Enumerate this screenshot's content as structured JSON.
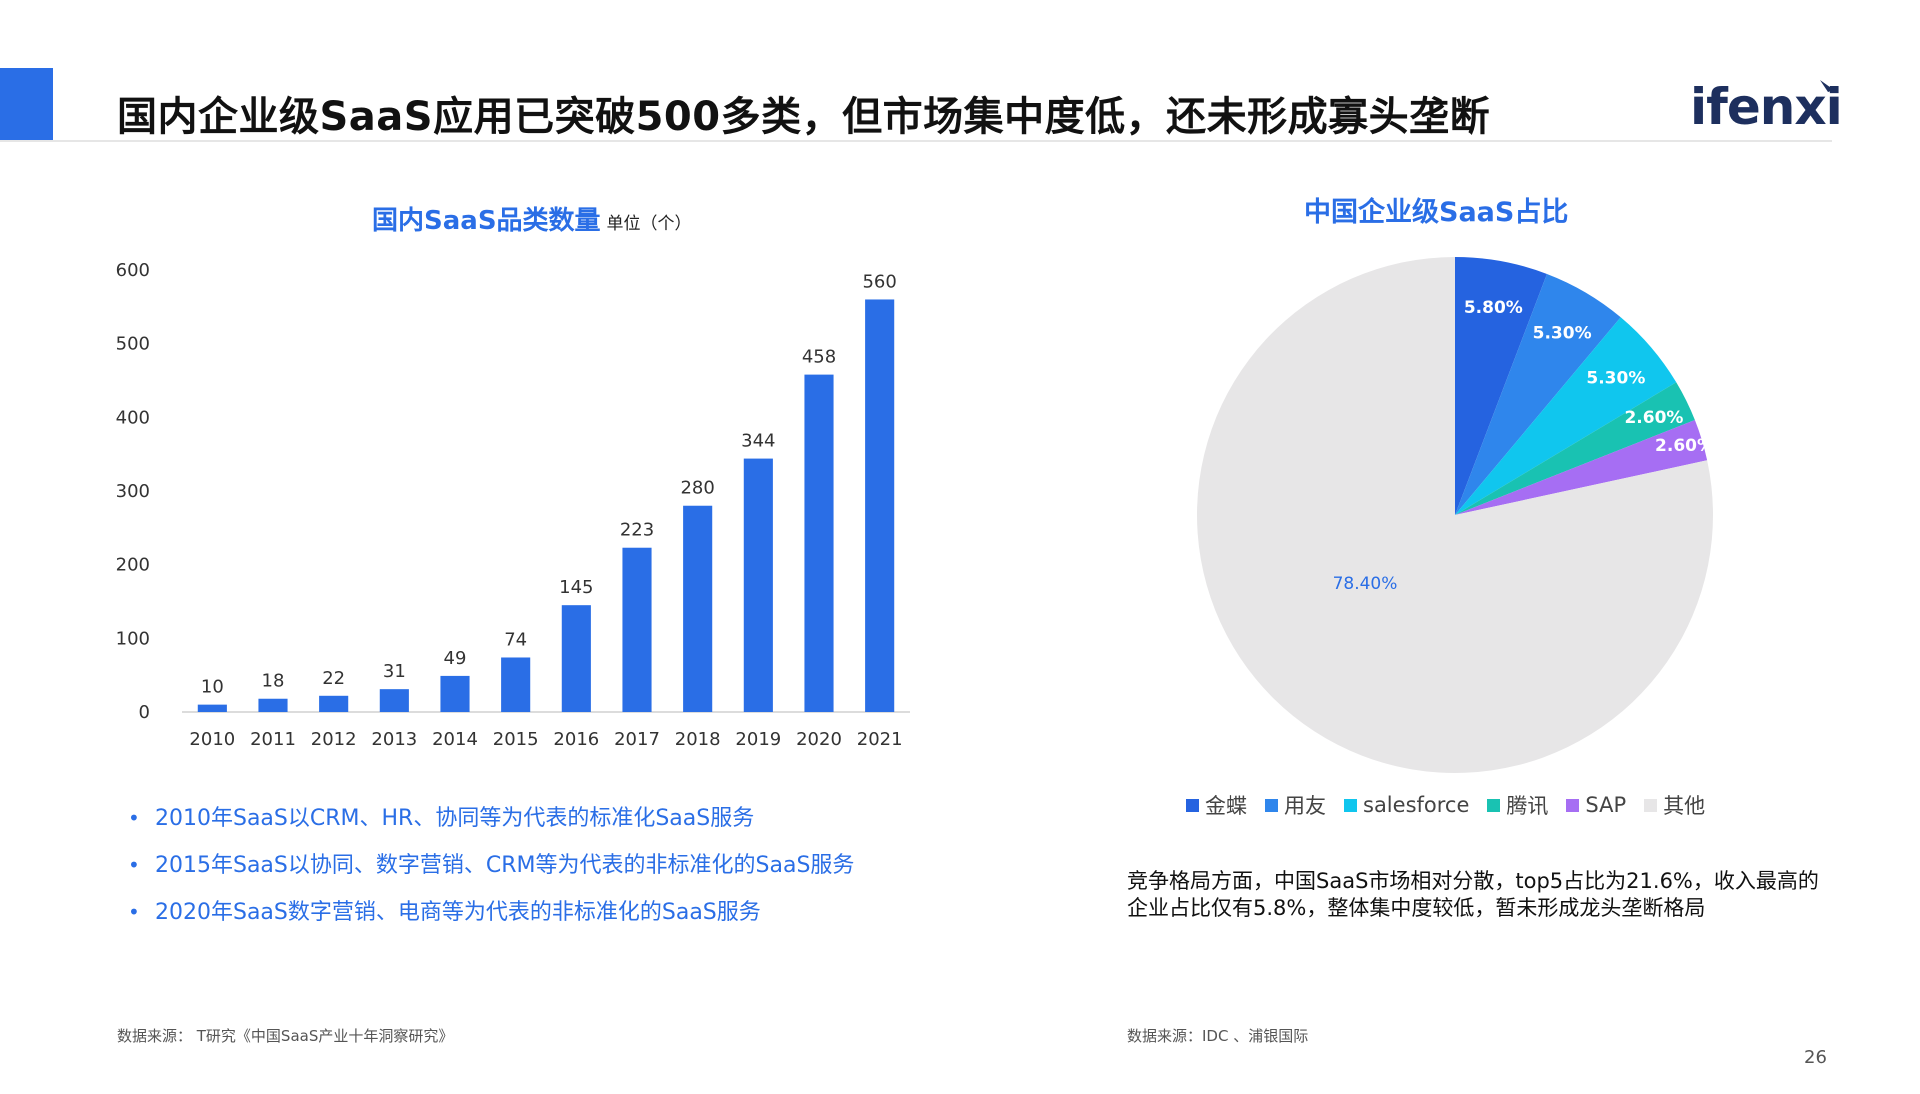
{
  "header": {
    "title": "国内企业级SaaS应用已突破500多类，但市场集中度低，还未形成寡头垄断",
    "logo_text": "ifenxi"
  },
  "colors": {
    "accent": "#2a6ee6",
    "bar": "#2a6ee6"
  },
  "chart_data": [
    {
      "type": "bar",
      "title": "国内SaaS品类数量",
      "unit_label": "单位（个）",
      "categories": [
        "2010",
        "2011",
        "2012",
        "2013",
        "2014",
        "2015",
        "2016",
        "2017",
        "2018",
        "2019",
        "2020",
        "2021"
      ],
      "values": [
        10,
        18,
        22,
        31,
        49,
        74,
        145,
        223,
        280,
        344,
        458,
        560
      ],
      "ylim": [
        0,
        600
      ],
      "yticks": [
        "0",
        "100",
        "200",
        "300",
        "400",
        "500",
        "600"
      ],
      "grid": false,
      "legend": "none"
    },
    {
      "type": "pie",
      "title": "中国企业级SaaS占比",
      "labels": [
        "金蝶",
        "用友",
        "salesforce",
        "腾讯",
        "SAP",
        "其他"
      ],
      "values": [
        5.8,
        5.3,
        5.3,
        2.6,
        2.6,
        78.4
      ],
      "value_labels": [
        "5.80%",
        "5.30%",
        "5.30%",
        "2.60%",
        "2.60%",
        "78.40%"
      ],
      "colors": [
        "#2563e0",
        "#2f86ec",
        "#10c6ee",
        "#19c2b2",
        "#a66ef3",
        "#e7e6e7"
      ],
      "legend": "bottom"
    }
  ],
  "bullets": [
    "2010年SaaS以CRM、HR、协同等为代表的标准化SaaS服务",
    "2015年SaaS以协同、数字营销、CRM等为代表的非标准化的SaaS服务",
    "2020年SaaS数字营销、电商等为代表的非标准化的SaaS服务"
  ],
  "summary": "竞争格局方面，中国SaaS市场相对分散，top5占比为21.6%，收入最高的企业占比仅有5.8%，整体集中度较低，暂未形成龙头垄断格局",
  "sources": {
    "left": "数据来源： T研究《中国SaaS产业十年洞察研究》",
    "right": "数据来源：IDC 、浦银国际"
  },
  "page_number": "26"
}
